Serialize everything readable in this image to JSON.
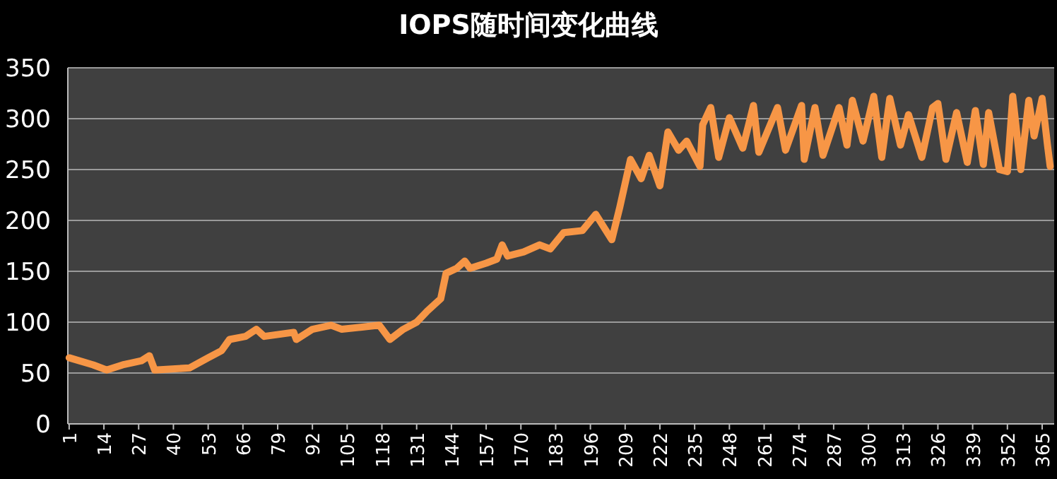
{
  "chart_data": {
    "type": "line",
    "title": "IOPS随时间变化曲线",
    "x": [
      1,
      10,
      15,
      21,
      28,
      31,
      33,
      46,
      53,
      58,
      61,
      67,
      71,
      74,
      85,
      86,
      92,
      99,
      103,
      110,
      117,
      121,
      126,
      131,
      135,
      140,
      142,
      146,
      149,
      151,
      157,
      161,
      163,
      165,
      171,
      177,
      181,
      186,
      193,
      198,
      204,
      207,
      211,
      215,
      218,
      222,
      225,
      229,
      232,
      237,
      238,
      241,
      244,
      248,
      253,
      257,
      259,
      266,
      269,
      275,
      276,
      280,
      283,
      289,
      292,
      294,
      298,
      302,
      305,
      308,
      312,
      315,
      320,
      324,
      326,
      329,
      333,
      337,
      340,
      343,
      345,
      349,
      352,
      354,
      357,
      360,
      362,
      365,
      367,
      368
    ],
    "series": [
      {
        "color": "#f79646",
        "values": [
          65,
          58,
          53,
          58,
          62,
          67,
          53,
          55,
          65,
          72,
          83,
          86,
          93,
          86,
          90,
          83,
          93,
          97,
          93,
          95,
          97,
          83,
          93,
          100,
          111,
          123,
          148,
          153,
          160,
          153,
          158,
          162,
          176,
          165,
          169,
          176,
          172,
          188,
          190,
          206,
          181,
          213,
          260,
          241,
          264,
          234,
          287,
          269,
          278,
          253,
          294,
          311,
          262,
          301,
          271,
          313,
          267,
          311,
          269,
          313,
          260,
          311,
          264,
          311,
          274,
          318,
          278,
          322,
          262,
          320,
          274,
          304,
          262,
          311,
          315,
          260,
          306,
          257,
          308,
          255,
          306,
          250,
          248,
          322,
          250,
          318,
          283,
          320,
          274,
          253
        ]
      }
    ],
    "xlim": [
      0.5,
      369.5
    ],
    "xticks": [
      1,
      14,
      27,
      40,
      53,
      66,
      79,
      92,
      105,
      118,
      131,
      144,
      157,
      170,
      183,
      196,
      209,
      222,
      235,
      248,
      261,
      274,
      287,
      300,
      313,
      326,
      339,
      352,
      365
    ],
    "ylim": [
      0,
      350
    ],
    "yticks": [
      0,
      50,
      100,
      150,
      200,
      250,
      300,
      350
    ],
    "grid": "y",
    "line_style": "solid"
  }
}
